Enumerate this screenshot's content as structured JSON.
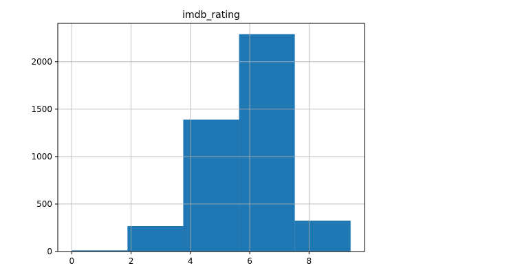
{
  "chart_data": {
    "type": "bar",
    "title": "imdb_rating",
    "xlabel": "",
    "ylabel": "",
    "bins": [
      {
        "start": 0.0,
        "end": 1.88,
        "count": 12
      },
      {
        "start": 1.88,
        "end": 3.76,
        "count": 268
      },
      {
        "start": 3.76,
        "end": 5.64,
        "count": 1390
      },
      {
        "start": 5.64,
        "end": 7.52,
        "count": 2290
      },
      {
        "start": 7.52,
        "end": 9.4,
        "count": 325
      }
    ],
    "xlim": [
      -0.47,
      9.87
    ],
    "ylim": [
      0,
      2404
    ],
    "x_ticks": [
      0,
      2,
      4,
      6,
      8
    ],
    "y_ticks": [
      0,
      500,
      1000,
      1500,
      2000
    ],
    "grid": true,
    "bar_color": "#1f77b4",
    "grid_color": "#b0b0b0"
  }
}
